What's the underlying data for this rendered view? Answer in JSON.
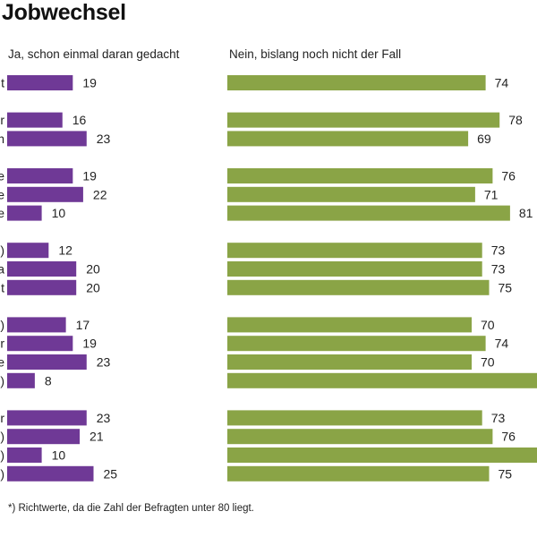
{
  "title": "Jobwechsel",
  "footnote": "*) Richtwerte, da die Zahl der Befragten unter 80 liegt.",
  "colors": {
    "left": "#6f3996",
    "right": "#8aa446"
  },
  "chart_data": {
    "type": "bar",
    "orientation": "horizontal",
    "series": [
      {
        "name": "Ja, schon einmal daran gedacht",
        "color": "#6f3996"
      },
      {
        "name": "Nein, bislang noch nicht der Fall",
        "color": "#8aa446"
      }
    ],
    "groups": [
      {
        "rows": [
          {
            "category": "t",
            "left": 19,
            "right": 74
          }
        ]
      },
      {
        "rows": [
          {
            "category": "r",
            "left": 16,
            "right": 78
          },
          {
            "category": "n",
            "left": 23,
            "right": 69
          }
        ]
      },
      {
        "rows": [
          {
            "category": "e",
            "left": 19,
            "right": 76
          },
          {
            "category": "e",
            "left": 22,
            "right": 71
          },
          {
            "category": "e",
            "left": 10,
            "right": 81
          }
        ]
      },
      {
        "rows": [
          {
            "category": ")",
            "left": 12,
            "right": 73
          },
          {
            "category": "a",
            "left": 20,
            "right": 73
          },
          {
            "category": "t",
            "left": 20,
            "right": 75
          }
        ]
      },
      {
        "rows": [
          {
            "category": ")",
            "left": 17,
            "right": 70
          },
          {
            "category": "r",
            "left": 19,
            "right": 74
          },
          {
            "category": "e",
            "left": 23,
            "right": 70
          },
          {
            "category": ")",
            "left": 8,
            "right": null
          }
        ]
      },
      {
        "rows": [
          {
            "category": "r",
            "left": 23,
            "right": 73
          },
          {
            "category": ")",
            "left": 21,
            "right": 76
          },
          {
            "category": ")",
            "left": 10,
            "right": null
          },
          {
            "category": ")",
            "left": 25,
            "right": 75
          }
        ]
      }
    ]
  }
}
